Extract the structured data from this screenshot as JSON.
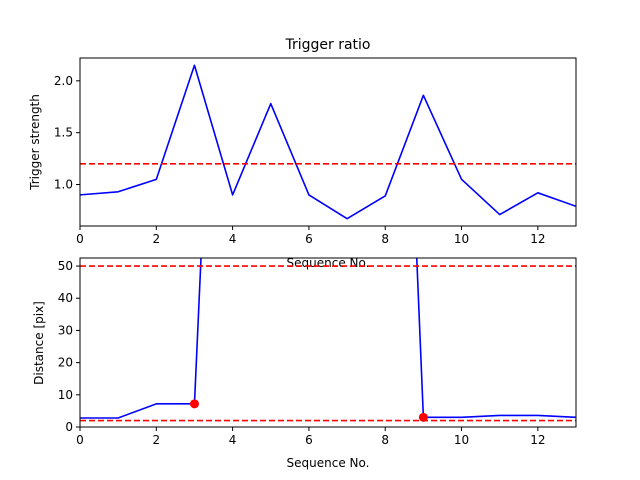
{
  "chart_data": [
    {
      "type": "line",
      "title": "Trigger ratio",
      "xlabel": "Sequence No.",
      "ylabel": "Trigger strength",
      "xlim": [
        0,
        13
      ],
      "ylim": [
        0.6,
        2.22
      ],
      "xticks": [
        0,
        2,
        4,
        6,
        8,
        10,
        12
      ],
      "yticks": [
        1.0,
        1.5,
        2.0
      ],
      "yticklabels": [
        "1.0",
        "1.5",
        "2.0"
      ],
      "grid": false,
      "series": [
        {
          "color": "#0000ff",
          "x": [
            0,
            1,
            2,
            3,
            4,
            5,
            6,
            7,
            8,
            9,
            10,
            11,
            12,
            13
          ],
          "values": [
            0.9,
            0.93,
            1.05,
            2.15,
            0.9,
            1.78,
            0.9,
            0.67,
            0.89,
            1.86,
            1.05,
            0.71,
            0.92,
            0.79
          ]
        }
      ],
      "hlines": [
        {
          "y": 1.2,
          "color": "#ff0000",
          "style": "dashed"
        }
      ]
    },
    {
      "type": "line",
      "title": "",
      "xlabel": "Sequence No.",
      "ylabel": "Distance [pix]",
      "xlim": [
        0,
        13
      ],
      "ylim": [
        0,
        52.5
      ],
      "xticks": [
        0,
        2,
        4,
        6,
        8,
        10,
        12
      ],
      "yticks": [
        0,
        10,
        20,
        30,
        40,
        50
      ],
      "yticklabels": [
        "0",
        "10",
        "20",
        "30",
        "40",
        "50"
      ],
      "grid": false,
      "series": [
        {
          "color": "#0000ff",
          "x": [
            0,
            1,
            2,
            3,
            3.2,
            8.8,
            9,
            10,
            11,
            12,
            13
          ],
          "values": [
            2.8,
            2.8,
            7.2,
            7.2,
            60,
            60,
            3.0,
            3.0,
            3.6,
            3.6,
            3.0
          ]
        }
      ],
      "markers": [
        {
          "x": 3,
          "y": 7.2,
          "color": "#ff0000"
        },
        {
          "x": 9,
          "y": 3.0,
          "color": "#ff0000"
        }
      ],
      "hlines": [
        {
          "y": 50,
          "color": "#ff0000",
          "style": "dashed"
        },
        {
          "y": 2,
          "color": "#ff0000",
          "style": "dashed"
        }
      ]
    }
  ]
}
